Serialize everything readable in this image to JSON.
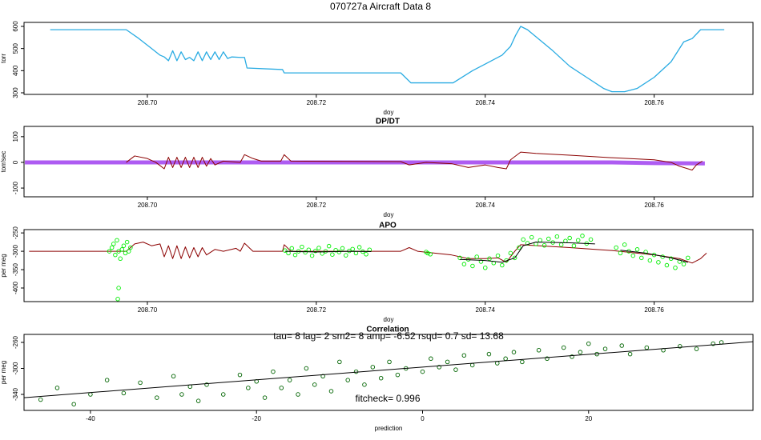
{
  "title": "070727a   Aircraft Data 8",
  "chart_data": [
    {
      "type": "line",
      "xlabel": "doy",
      "ylabel": "torr",
      "xlim": [
        208.6854,
        208.7717
      ],
      "ylim": [
        292.8,
        618
      ],
      "xticks": [
        {
          "value": 208.7,
          "label": "208.70"
        },
        {
          "value": 208.72,
          "label": "208.72"
        },
        {
          "value": 208.74,
          "label": "208.74"
        },
        {
          "value": 208.76,
          "label": "208.76"
        }
      ],
      "yticks": [
        300,
        400,
        500,
        600
      ],
      "series": [
        {
          "style": "line",
          "color": "#29abe2",
          "width": 1.3,
          "x": [
            208.6885,
            208.6975,
            208.699,
            208.7005,
            208.7015,
            208.702,
            208.7025,
            208.703,
            208.7035,
            208.704,
            208.7045,
            208.705,
            208.7055,
            208.706,
            208.7065,
            208.707,
            208.7075,
            208.708,
            208.7085,
            208.709,
            208.7095,
            208.71,
            208.711,
            208.7115,
            208.7118,
            208.716,
            208.7162,
            208.73,
            208.7312,
            208.7362,
            208.7385,
            208.74,
            208.742,
            208.743,
            208.7436,
            208.7442,
            208.745,
            208.748,
            208.75,
            208.752,
            208.754,
            208.755,
            208.7565,
            208.758,
            208.76,
            208.762,
            208.7635,
            208.7645,
            208.7655,
            208.7683
          ],
          "values": [
            585,
            585,
            545,
            500,
            470,
            462,
            445,
            490,
            445,
            485,
            450,
            460,
            445,
            485,
            445,
            485,
            450,
            485,
            450,
            485,
            455,
            462,
            460,
            460,
            412,
            405,
            390,
            390,
            345,
            345,
            400,
            430,
            470,
            510,
            560,
            600,
            585,
            490,
            420,
            370,
            320,
            305,
            305,
            320,
            370,
            440,
            530,
            545,
            585,
            585
          ]
        }
      ]
    },
    {
      "type": "line",
      "title": "DP/DT",
      "xlabel": "doy",
      "ylabel": "torr/sec",
      "xlim": [
        208.6854,
        208.7717
      ],
      "ylim": [
        -134,
        140
      ],
      "xticks": [
        {
          "value": 208.7,
          "label": "208.70"
        },
        {
          "value": 208.72,
          "label": "208.72"
        },
        {
          "value": 208.74,
          "label": "208.74"
        },
        {
          "value": 208.76,
          "label": "208.76"
        }
      ],
      "yticks": [
        -100,
        0,
        100
      ],
      "series": [
        {
          "style": "line",
          "color": "#a040f0",
          "width": 5,
          "x": [
            208.6855,
            208.755,
            208.76,
            208.766
          ],
          "values": [
            0,
            0,
            -3,
            -4
          ]
        },
        {
          "style": "line",
          "color": "#8b0000",
          "width": 1,
          "x": [
            208.6975,
            208.6985,
            208.7,
            208.701,
            208.702,
            208.7025,
            208.703,
            208.7035,
            208.704,
            208.7045,
            208.705,
            208.7055,
            208.706,
            208.7065,
            208.707,
            208.7075,
            208.708,
            208.709,
            208.711,
            208.7115,
            208.7125,
            208.7135,
            208.7158,
            208.7162,
            208.717,
            208.73,
            208.731,
            208.733,
            208.736,
            208.738,
            208.74,
            208.7415,
            208.7425,
            208.743,
            208.7442,
            208.746,
            208.75,
            208.755,
            208.76,
            208.762,
            208.763,
            208.7645,
            208.765,
            208.7657
          ],
          "values": [
            0,
            25,
            15,
            0,
            -25,
            20,
            -20,
            20,
            -20,
            20,
            -20,
            20,
            -20,
            20,
            -15,
            15,
            -10,
            5,
            0,
            30,
            15,
            5,
            5,
            30,
            5,
            3,
            -10,
            0,
            -5,
            -20,
            -10,
            -20,
            -25,
            10,
            40,
            35,
            28,
            18,
            10,
            0,
            -15,
            -30,
            -10,
            5
          ]
        }
      ]
    },
    {
      "type": "line",
      "title": "APO",
      "xlabel": "doy",
      "ylabel": "per meg",
      "xlim": [
        208.6854,
        208.7717
      ],
      "ylim": [
        -437,
        -241
      ],
      "xticks": [
        {
          "value": 208.7,
          "label": "208.70"
        },
        {
          "value": 208.72,
          "label": "208.72"
        },
        {
          "value": 208.74,
          "label": "208.74"
        },
        {
          "value": 208.76,
          "label": "208.76"
        }
      ],
      "yticks": [
        -400,
        -350,
        -300,
        -250
      ],
      "series": [
        {
          "style": "line",
          "color": "#8b0000",
          "width": 1,
          "x": [
            208.686,
            208.6975,
            208.6985,
            208.6995,
            208.7005,
            208.7015,
            208.702,
            208.7025,
            208.703,
            208.7035,
            208.704,
            208.7045,
            208.705,
            208.7055,
            208.706,
            208.7065,
            208.707,
            208.708,
            208.709,
            208.7105,
            208.711,
            208.7115,
            208.7125,
            208.716,
            208.7162,
            208.717,
            208.73,
            208.731,
            208.732,
            208.736,
            208.738,
            208.74,
            208.7415,
            208.7425,
            208.7435,
            208.7442,
            208.75,
            208.755,
            208.76,
            208.763,
            208.7645,
            208.7655,
            208.7662
          ],
          "values": [
            -300,
            -300,
            -280,
            -275,
            -285,
            -280,
            -315,
            -285,
            -320,
            -285,
            -320,
            -288,
            -318,
            -290,
            -315,
            -290,
            -310,
            -295,
            -300,
            -292,
            -300,
            -278,
            -300,
            -300,
            -282,
            -300,
            -300,
            -290,
            -300,
            -310,
            -320,
            -320,
            -318,
            -330,
            -300,
            -282,
            -290,
            -298,
            -310,
            -320,
            -332,
            -320,
            -305
          ]
        },
        {
          "style": "points",
          "color": "#00ee00",
          "x": [
            208.6955,
            208.6958,
            208.696,
            208.6962,
            208.6964,
            208.6966,
            208.6968,
            208.697,
            208.6972,
            208.6974,
            208.6976,
            208.6966,
            208.6965,
            208.6978,
            208.698,
            208.7163,
            208.7167,
            208.7171,
            208.7175,
            208.7179,
            208.7183,
            208.7187,
            208.7191,
            208.7195,
            208.7199,
            208.7203,
            208.7207,
            208.7211,
            208.7215,
            208.7219,
            208.7223,
            208.7227,
            208.7231,
            208.7235,
            208.7239,
            208.7243,
            208.7247,
            208.7251,
            208.7255,
            208.7259,
            208.7263,
            208.733,
            208.7332,
            208.7335,
            208.737,
            208.7375,
            208.738,
            208.7385,
            208.739,
            208.7395,
            208.74,
            208.7405,
            208.741,
            208.7415,
            208.742,
            208.7425,
            208.743,
            208.7435,
            208.744,
            208.7445,
            208.745,
            208.7455,
            208.746,
            208.7465,
            208.747,
            208.7475,
            208.748,
            208.7485,
            208.749,
            208.7495,
            208.75,
            208.7505,
            208.751,
            208.7515,
            208.752,
            208.7525,
            208.7555,
            208.756,
            208.7565,
            208.757,
            208.7575,
            208.758,
            208.7585,
            208.759,
            208.7595,
            208.76,
            208.7605,
            208.761,
            208.7615,
            208.762,
            208.7625,
            208.763,
            208.7635,
            208.764
          ],
          "values": [
            -300,
            -290,
            -280,
            -310,
            -270,
            -300,
            -320,
            -295,
            -285,
            -305,
            -275,
            -400,
            -430,
            -300,
            -290,
            -298,
            -305,
            -292,
            -310,
            -300,
            -288,
            -303,
            -296,
            -312,
            -299,
            -291,
            -306,
            -300,
            -286,
            -309,
            -297,
            -302,
            -292,
            -311,
            -299,
            -294,
            -305,
            -289,
            -301,
            -308,
            -296,
            -302,
            -305,
            -308,
            -318,
            -335,
            -322,
            -340,
            -315,
            -328,
            -345,
            -320,
            -332,
            -312,
            -338,
            -325,
            -305,
            -318,
            -290,
            -268,
            -278,
            -262,
            -280,
            -270,
            -284,
            -266,
            -276,
            -260,
            -282,
            -272,
            -264,
            -285,
            -270,
            -258,
            -279,
            -268,
            -290,
            -305,
            -282,
            -300,
            -312,
            -295,
            -318,
            -302,
            -325,
            -310,
            -330,
            -315,
            -338,
            -320,
            -345,
            -328,
            -335,
            -318
          ]
        },
        {
          "style": "line",
          "color": "#000000",
          "width": 1,
          "x": [
            208.7163,
            208.72,
            208.724,
            208.7265,
            null,
            208.737,
            208.74,
            208.742,
            208.7435,
            208.7445,
            208.746,
            208.75,
            208.753,
            null,
            208.756,
            208.759,
            208.762,
            208.764
          ],
          "values": [
            -300,
            -302,
            -300,
            -301,
            null,
            -322,
            -325,
            -330,
            -318,
            -285,
            -275,
            -277,
            -280,
            null,
            -297,
            -305,
            -318,
            -330
          ]
        }
      ]
    },
    {
      "type": "scatter",
      "title": "Correlation",
      "xlabel": "prediction",
      "ylabel": "per meg",
      "annotations": [
        "tau= 8 lag= 2 sm2= 8 amp= -6.52 rsqd= 0.7 sd= 13.68",
        "fitcheck= 0.996"
      ],
      "xlim": [
        -48,
        39.8
      ],
      "ylim": [
        -364.6,
        -247.7
      ],
      "xticks": [
        -40,
        -20,
        0,
        20
      ],
      "yticks": [
        -340,
        -300,
        -260
      ],
      "series": [
        {
          "style": "points",
          "color": "#006400",
          "x": [
            -46,
            -44,
            -42,
            -40,
            -38,
            -36,
            -34,
            -32,
            -30,
            -29,
            -28,
            -27,
            -26,
            -24,
            -22,
            -21,
            -20,
            -19,
            -18,
            -17,
            -16,
            -15,
            -14,
            -13,
            -12,
            -11,
            -10,
            -9,
            -8,
            -7,
            -6,
            -5,
            -4,
            -3,
            -2,
            0,
            1,
            2,
            3,
            4,
            5,
            6,
            8,
            9,
            10,
            11,
            12,
            14,
            15,
            17,
            18,
            19,
            20,
            21,
            22,
            24,
            25,
            27,
            29,
            31,
            33,
            35,
            36
          ],
          "values": [
            -348,
            -330,
            -355,
            -340,
            -318,
            -338,
            -322,
            -345,
            -312,
            -340,
            -328,
            -350,
            -325,
            -340,
            -310,
            -330,
            -320,
            -345,
            -305,
            -330,
            -318,
            -340,
            -300,
            -325,
            -312,
            -335,
            -290,
            -318,
            -305,
            -325,
            -298,
            -315,
            -290,
            -310,
            -300,
            -305,
            -285,
            -298,
            -290,
            -302,
            -280,
            -295,
            -278,
            -292,
            -285,
            -275,
            -290,
            -272,
            -285,
            -268,
            -282,
            -275,
            -262,
            -278,
            -270,
            -265,
            -278,
            -268,
            -272,
            -266,
            -270,
            -262,
            -260
          ]
        },
        {
          "style": "line",
          "color": "#000000",
          "width": 1,
          "x": [
            -48,
            39.8
          ],
          "values": [
            -345,
            -259
          ]
        }
      ]
    }
  ]
}
